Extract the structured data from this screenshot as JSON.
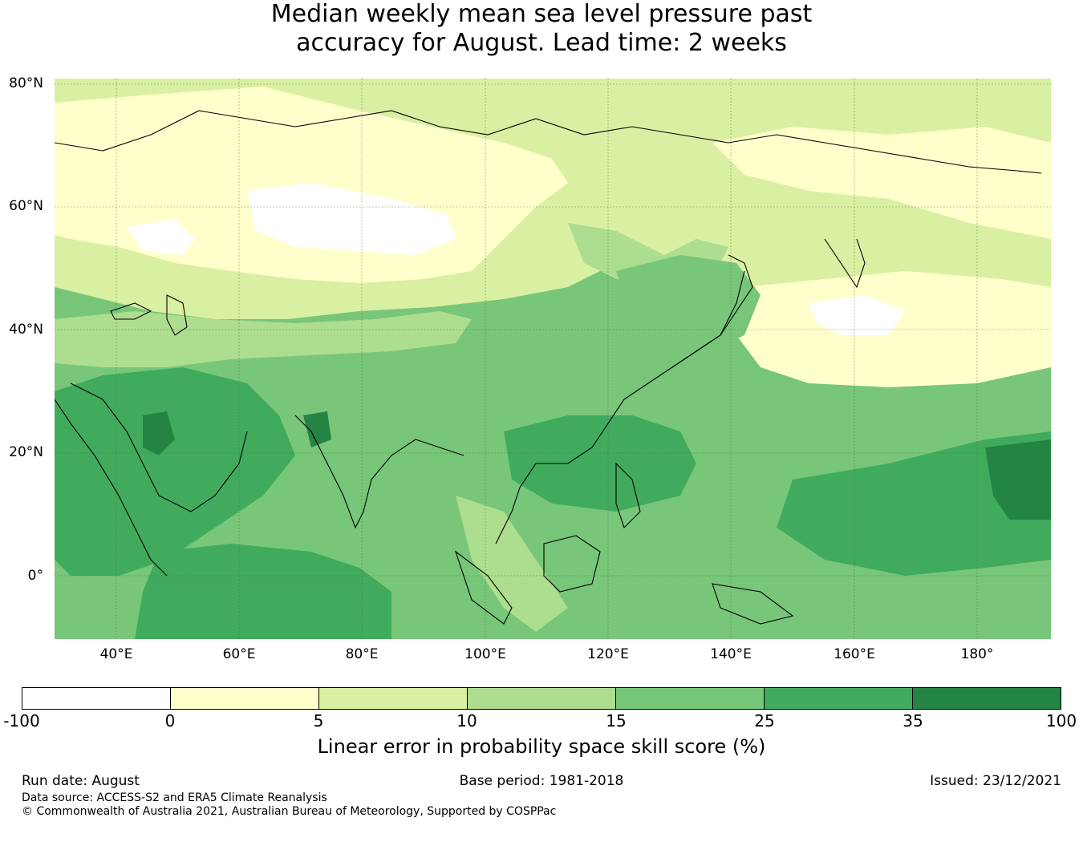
{
  "title_line1": "Median weekly mean sea level pressure past",
  "title_line2": "accuracy for August. Lead time: 2 weeks",
  "map": {
    "lat_ticks": [
      "80°N",
      "60°N",
      "40°N",
      "20°N",
      "0°"
    ],
    "lon_ticks": [
      "40°E",
      "60°E",
      "80°E",
      "100°E",
      "120°E",
      "140°E",
      "160°E",
      "180°"
    ],
    "lon_range": [
      30,
      192
    ],
    "lat_range": [
      -10,
      81
    ]
  },
  "colorbar": {
    "colors": [
      "#ffffff",
      "#ffffcc",
      "#d9f0a3",
      "#addd8e",
      "#78c679",
      "#41ab5d",
      "#238443"
    ],
    "tick_labels": [
      "-100",
      "0",
      "5",
      "10",
      "15",
      "25",
      "35",
      "100"
    ],
    "label": "Linear error in probability space skill score (%)"
  },
  "footer": {
    "run_date": "Run date: August",
    "base_period": "Base period: 1981-2018",
    "issued": "Issued: 23/12/2021",
    "data_source": "Data source: ACCESS-S2 and ERA5 Climate Reanalysis",
    "copyright": "© Commonwealth of Australia 2021, Australian Bureau of Meteorology, Supported by COSPPac"
  }
}
